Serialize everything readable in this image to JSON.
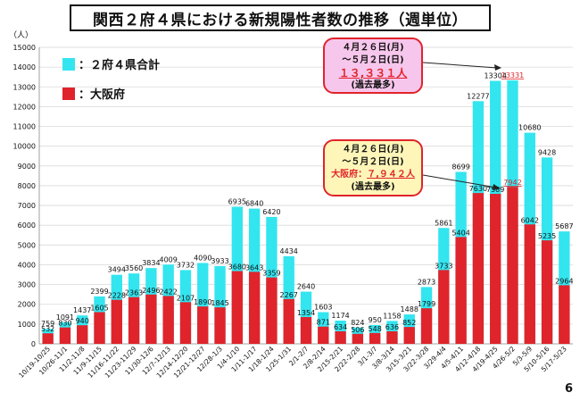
{
  "title": "関西２府４県における新規陽性者数の推移（週単位）",
  "page_number": "6",
  "colors": {
    "total": "#33e5ef",
    "osaka": "#e0242b",
    "total_callout_bg": "#f7c6ec",
    "osaka_callout_bg": "#fdf6b8"
  },
  "legend": [
    {
      "label": "：２府４県合計",
      "color": "#33e5ef"
    },
    {
      "label": "：大阪府",
      "color": "#e0242b"
    }
  ],
  "callouts": {
    "total": {
      "line1": "４月２６日(月)",
      "line2": "～５月２日(日)",
      "value": "１３,３３１人",
      "note": "(過去最多)"
    },
    "osaka": {
      "line1": "４月２６日(月)",
      "line2": "～５月２日(日)",
      "prefix": "大阪府：",
      "value": "７,９４２人",
      "note": "(過去最多)"
    }
  },
  "chart_data": {
    "type": "bar",
    "ylabel": "（人）",
    "ylim": [
      0,
      15000
    ],
    "yticks": [
      0,
      1000,
      2000,
      3000,
      4000,
      5000,
      6000,
      7000,
      8000,
      9000,
      10000,
      11000,
      12000,
      13000,
      14000,
      15000
    ],
    "grid": true,
    "categories": [
      "10/19-10/25",
      "10/26-11/1",
      "11/2-11/8",
      "11/9-11/15",
      "11/16-11/22",
      "11/23-11/29",
      "11/30-12/6",
      "12/7-12/13",
      "12/14-12/20",
      "12/21-12/27",
      "12/28-1/3",
      "1/4-1/10",
      "1/11-1/17",
      "1/18-1/24",
      "1/25-1/31",
      "2/1-2/7",
      "2/8-2/14",
      "2/15-2/21",
      "2/22-2/28",
      "3/1-3/7",
      "3/8-3/14",
      "3/15-3/21",
      "3/22-3/28",
      "3/29-4/4",
      "4/5-4/11",
      "4/12-4/18",
      "4/19-4/25",
      "4/26-5/2",
      "5/3-5/9",
      "5/10-5/16",
      "5/17-5/23"
    ],
    "series": [
      {
        "name": "２府４県合計",
        "values": [
          759,
          1091,
          1437,
          2399,
          3494,
          3560,
          3834,
          4009,
          3732,
          4090,
          3933,
          6935,
          6840,
          6420,
          4434,
          2640,
          1603,
          1174,
          824,
          950,
          1158,
          1488,
          2873,
          5861,
          8699,
          12277,
          13304,
          13331,
          10680,
          9428,
          5687
        ]
      },
      {
        "name": "大阪府",
        "values": [
          532,
          830,
          940,
          1605,
          2228,
          2363,
          2496,
          2422,
          2107,
          1890,
          1845,
          3680,
          3643,
          3359,
          2267,
          1354,
          871,
          634,
          506,
          548,
          636,
          852,
          1799,
          3733,
          5404,
          7630,
          7589,
          7942,
          6042,
          5235,
          2964
        ]
      }
    ]
  }
}
